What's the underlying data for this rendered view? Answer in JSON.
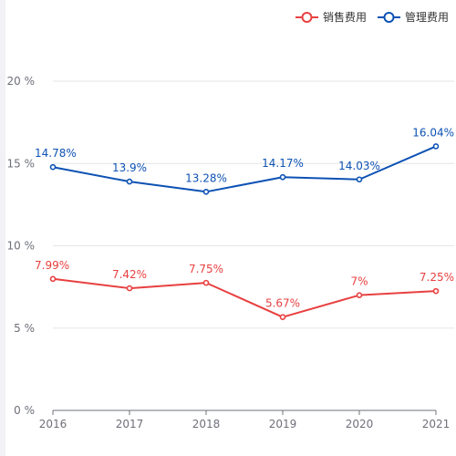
{
  "chart_data": {
    "type": "line",
    "x": [
      "2016",
      "2017",
      "2018",
      "2019",
      "2020",
      "2021"
    ],
    "y_ticks": [
      "0 %",
      "5 %",
      "10 %",
      "15 %",
      "20 %"
    ],
    "ylim": [
      0,
      20
    ],
    "grid": true,
    "legend_position": "top-right",
    "series": [
      {
        "name": "销售费用",
        "color": "#e84040",
        "values": [
          7.99,
          7.42,
          7.75,
          5.67,
          7,
          7.25
        ],
        "labels": [
          "7.99%",
          "7.42%",
          "7.75%",
          "5.67%",
          "7%",
          "7.25%"
        ]
      },
      {
        "name": "管理费用",
        "color": "#0d52b4",
        "values": [
          14.78,
          13.9,
          13.28,
          14.17,
          14.03,
          16.04
        ],
        "labels": [
          "14.78%",
          "13.9%",
          "13.28%",
          "14.17%",
          "14.03%",
          "16.04%"
        ]
      }
    ]
  },
  "legend": {
    "items": [
      {
        "label": "销售费用",
        "color": "#e84040"
      },
      {
        "label": "管理费用",
        "color": "#0d52b4"
      }
    ]
  }
}
